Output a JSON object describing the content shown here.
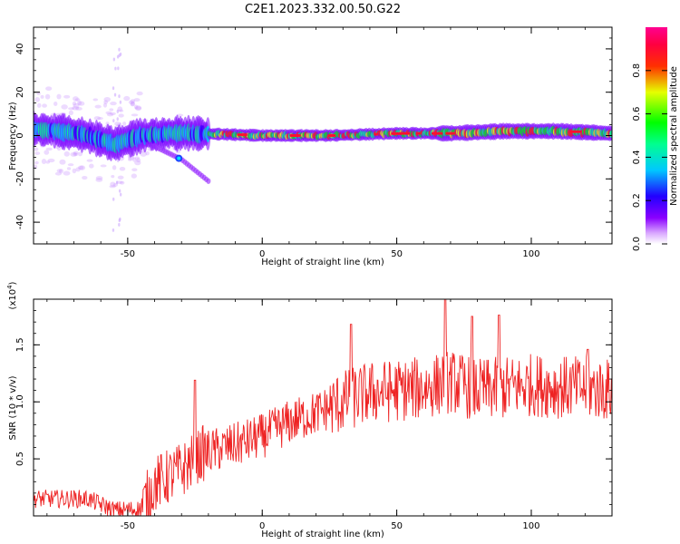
{
  "figure": {
    "title": "C2E1.2023.332.00.50.G22"
  },
  "chart_data": [
    {
      "type": "heatmap",
      "xlabel": "Height of straight line (km)",
      "ylabel": "Frequency (Hz)",
      "xlim": [
        -85,
        130
      ],
      "ylim": [
        -50,
        50
      ],
      "x_ticks": [
        "-50",
        "0",
        "50",
        "100"
      ],
      "y_ticks": [
        "-40",
        "-20",
        "0",
        "20",
        "40"
      ],
      "colorbar": {
        "label": "Normalized spectral amplitude",
        "ticks": [
          "0.0",
          "0.2",
          "0.4",
          "0.6",
          "0.8"
        ],
        "range": [
          0,
          1
        ],
        "colormap": "rainbow (violet → blue → cyan → green → yellow → red → magenta)"
      },
      "ridge": {
        "description": "Main spectral line near 0 Hz",
        "points": [
          [
            -85,
            3
          ],
          [
            -75,
            2
          ],
          [
            -65,
            0
          ],
          [
            -55,
            -4
          ],
          [
            -45,
            0
          ],
          [
            -35,
            1
          ],
          [
            -25,
            1
          ],
          [
            0,
            0
          ],
          [
            25,
            0
          ],
          [
            50,
            1
          ],
          [
            70,
            1
          ],
          [
            90,
            2
          ],
          [
            110,
            2
          ],
          [
            130,
            1
          ]
        ]
      },
      "branch": {
        "description": "Secondary descending trace",
        "points": [
          [
            -40,
            -5
          ],
          [
            -35,
            -8
          ],
          [
            -30,
            -11
          ],
          [
            -25,
            -16
          ],
          [
            -20,
            -21
          ]
        ]
      }
    },
    {
      "type": "line",
      "xlabel": "Height of straight line (km)",
      "ylabel": "SNR (10 * v/v)",
      "y_multiplier": "(x10",
      "y_multiplier_exp": "4",
      "y_multiplier_close": ")",
      "xlim": [
        -85,
        130
      ],
      "ylim": [
        0,
        1.9
      ],
      "x_ticks": [
        "-50",
        "0",
        "50",
        "100"
      ],
      "y_ticks": [
        "0.5",
        "1.0",
        "1.5"
      ],
      "series": [
        {
          "color": "#ee2222",
          "trend": [
            [
              -85,
              0.15
            ],
            [
              -65,
              0.15
            ],
            [
              -55,
              0.05
            ],
            [
              -45,
              0.06
            ],
            [
              -40,
              0.28
            ],
            [
              -30,
              0.4
            ],
            [
              -22,
              0.55
            ],
            [
              -10,
              0.62
            ],
            [
              0,
              0.7
            ],
            [
              10,
              0.82
            ],
            [
              20,
              0.9
            ],
            [
              30,
              1.0
            ],
            [
              40,
              1.08
            ],
            [
              50,
              1.1
            ],
            [
              60,
              1.12
            ],
            [
              70,
              1.18
            ],
            [
              80,
              1.1
            ],
            [
              90,
              1.12
            ],
            [
              100,
              1.15
            ],
            [
              110,
              1.13
            ],
            [
              120,
              1.12
            ],
            [
              130,
              1.1
            ]
          ],
          "peaks": [
            [
              -25,
              1.19
            ],
            [
              33,
              1.68
            ],
            [
              68,
              1.9
            ],
            [
              78,
              1.75
            ],
            [
              88,
              1.76
            ],
            [
              121,
              1.46
            ]
          ]
        }
      ]
    }
  ]
}
